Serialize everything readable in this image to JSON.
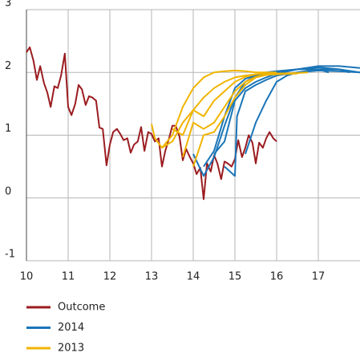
{
  "chart_data": {
    "type": "line",
    "grid": true,
    "xlim": [
      10,
      18
    ],
    "xticks": [
      10,
      11,
      12,
      13,
      14,
      15,
      16,
      17
    ],
    "ylim": [
      -1,
      3
    ],
    "yticks": [
      -1,
      0,
      1,
      2,
      3
    ],
    "series": [
      {
        "name": "Outcome",
        "color": "#9b1c20",
        "lines": [
          {
            "x": [
              10,
              10.08,
              10.17,
              10.25,
              10.33,
              10.42,
              10.5,
              10.58,
              10.67,
              10.75,
              10.83,
              10.92,
              11,
              11.08,
              11.17,
              11.25,
              11.33,
              11.42,
              11.5,
              11.58,
              11.67,
              11.75,
              11.83,
              11.92,
              12,
              12.08,
              12.17,
              12.25,
              12.33,
              12.42,
              12.5,
              12.58,
              12.67,
              12.75,
              12.83,
              12.92,
              13,
              13.08,
              13.17,
              13.25,
              13.33,
              13.42,
              13.5,
              13.58,
              13.67,
              13.75,
              13.83,
              13.92,
              14,
              14.08,
              14.17,
              14.25,
              14.33,
              14.42,
              14.5,
              14.58,
              14.67,
              14.75,
              14.83,
              14.92,
              15,
              15.08,
              15.17,
              15.25,
              15.33,
              15.42,
              15.5,
              15.58,
              15.67,
              15.75,
              15.83,
              15.92,
              16
            ],
            "values": [
              2.32,
              2.4,
              2.18,
              1.88,
              2.1,
              1.83,
              1.68,
              1.45,
              1.78,
              1.75,
              1.95,
              2.3,
              1.45,
              1.32,
              1.5,
              1.8,
              1.73,
              1.48,
              1.62,
              1.6,
              1.55,
              1.12,
              1.1,
              0.52,
              0.85,
              1.05,
              1.1,
              1.02,
              0.92,
              0.95,
              0.72,
              0.85,
              0.9,
              1.13,
              0.75,
              1.05,
              1.02,
              0.9,
              0.95,
              0.5,
              0.75,
              0.95,
              1.15,
              1.15,
              0.98,
              0.6,
              0.78,
              0.65,
              0.55,
              0.38,
              0.48,
              -0.02,
              0.55,
              0.42,
              0.68,
              0.55,
              0.3,
              0.58,
              0.55,
              0.5,
              0.62,
              0.92,
              0.65,
              0.8,
              1.0,
              0.88,
              0.55,
              0.88,
              0.8,
              0.95,
              1.05,
              0.95,
              0.9
            ]
          }
        ]
      },
      {
        "name": "2014",
        "color": "#1a75b8",
        "lines": [
          {
            "x": [
              14,
              14.25,
              14.5,
              14.75,
              15,
              15.25,
              15.5,
              15.75,
              16,
              16.5,
              17,
              17.25
            ],
            "values": [
              0.7,
              0.35,
              0.65,
              1.15,
              1.6,
              1.85,
              1.95,
              2.0,
              2.02,
              2.05,
              2.05,
              2.0
            ]
          },
          {
            "x": [
              14.25,
              14.5,
              14.75,
              15,
              15.25,
              15.5,
              15.75,
              16,
              16.5,
              17,
              17.5,
              17.75
            ],
            "values": [
              0.5,
              0.75,
              1.3,
              1.75,
              1.9,
              1.95,
              1.98,
              2.0,
              2.05,
              2.08,
              2.05,
              2.0
            ]
          },
          {
            "x": [
              14.5,
              14.75,
              15,
              15.25,
              15.5,
              15.75,
              16,
              16.5,
              17,
              17.5,
              18
            ],
            "values": [
              0.7,
              0.9,
              1.55,
              1.75,
              1.85,
              1.92,
              1.98,
              2.05,
              2.1,
              2.1,
              2.07
            ]
          },
          {
            "x": [
              14.75,
              15,
              15.05,
              15.25,
              15.5,
              15.75,
              16,
              16.5,
              17,
              17.5,
              18
            ],
            "values": [
              0.5,
              0.35,
              1.3,
              1.7,
              1.8,
              1.88,
              1.95,
              2.0,
              2.05,
              2.05,
              2.0
            ]
          },
          {
            "x": [
              15.25,
              15.5,
              15.75,
              16,
              16.25,
              16.5,
              17,
              17.5,
              18
            ],
            "values": [
              0.7,
              1.2,
              1.55,
              1.85,
              1.95,
              2.0,
              2.03,
              2.02,
              2.0
            ]
          }
        ]
      },
      {
        "name": "2013",
        "color": "#f0b400",
        "lines": [
          {
            "x": [
              13,
              13.08,
              13.25,
              13.5,
              13.75,
              14,
              14.25,
              14.5,
              14.75,
              15,
              15.25,
              15.5,
              15.75
            ],
            "values": [
              1.18,
              0.95,
              0.8,
              0.9,
              1.2,
              1.4,
              1.6,
              1.75,
              1.85,
              1.92,
              1.95,
              1.97,
              1.98
            ]
          },
          {
            "x": [
              13.25,
              13.5,
              13.75,
              14,
              14.25,
              14.5,
              14.75,
              15,
              15.25,
              15.5,
              15.75,
              16
            ],
            "values": [
              0.8,
              1.0,
              1.45,
              1.75,
              1.92,
              2.0,
              2.02,
              2.03,
              2.02,
              2.0,
              2.0,
              2.0
            ]
          },
          {
            "x": [
              13.5,
              13.75,
              14,
              14.25,
              14.5,
              14.75,
              15,
              15.25,
              15.5,
              15.75,
              16,
              16.25
            ],
            "values": [
              1.1,
              1.0,
              1.4,
              1.3,
              1.55,
              1.7,
              1.85,
              1.93,
              1.97,
              1.98,
              1.98,
              1.98
            ]
          },
          {
            "x": [
              13.75,
              14,
              14.25,
              14.5,
              14.75,
              15,
              15.25,
              15.5,
              15.75,
              16,
              16.5
            ],
            "values": [
              0.65,
              1.2,
              1.1,
              1.2,
              1.45,
              1.7,
              1.85,
              1.93,
              1.96,
              1.97,
              1.98
            ]
          },
          {
            "x": [
              14,
              14.25,
              14.5,
              14.75,
              15,
              15.25,
              15.5,
              15.75,
              16,
              16.5,
              16.75
            ],
            "values": [
              0.5,
              1.0,
              1.05,
              1.3,
              1.6,
              1.8,
              1.92,
              1.96,
              1.98,
              1.99,
              2.0
            ]
          }
        ]
      }
    ]
  }
}
